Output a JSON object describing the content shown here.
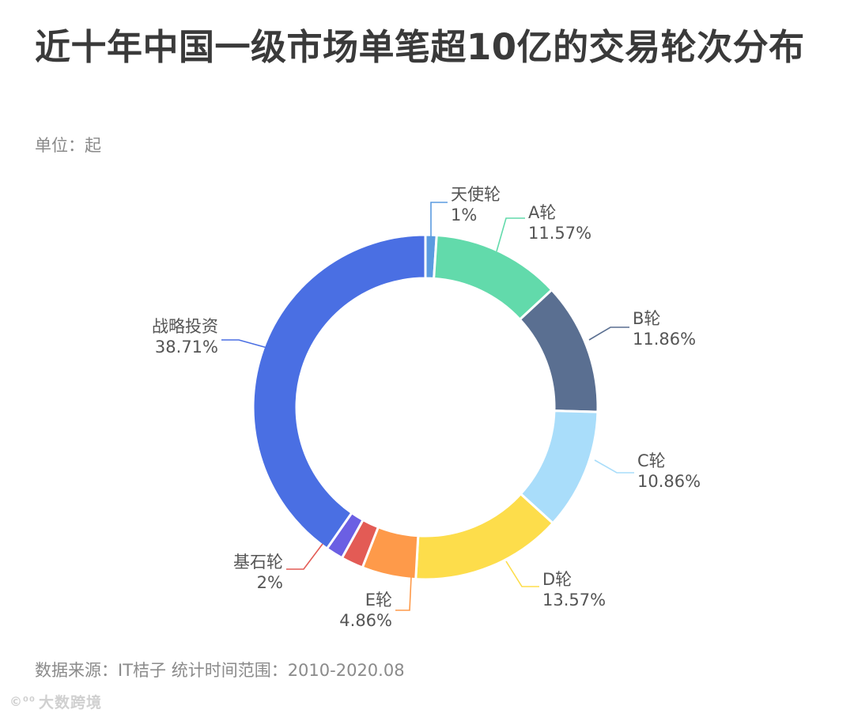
{
  "header": {
    "title": "近十年中国一级市场单笔超10亿的交易轮次分布",
    "unit": "单位：起"
  },
  "footer": {
    "source": "数据来源：IT桔子 统计时间范围：2010-2020.08",
    "watermark": "大数跨境"
  },
  "icons": {
    "watermark": "logo-icon"
  },
  "chart_data": {
    "type": "pie",
    "donut": true,
    "start": "top",
    "direction": "clockwise",
    "slices": [
      {
        "name": "天使轮",
        "value": 1,
        "label": "1%",
        "color": "#5B9BE0"
      },
      {
        "name": "A轮",
        "value": 11.57,
        "label": "11.57%",
        "color": "#62DAAB"
      },
      {
        "name": "B轮",
        "value": 11.86,
        "label": "11.86%",
        "color": "#5A6F91"
      },
      {
        "name": "C轮",
        "value": 10.86,
        "label": "10.86%",
        "color": "#A9DDFA"
      },
      {
        "name": "D轮",
        "value": 13.57,
        "label": "13.57%",
        "color": "#FDDD4B"
      },
      {
        "name": "E轮",
        "value": 4.86,
        "label": "4.86%",
        "color": "#FE9A4A"
      },
      {
        "name": "基石轮",
        "value": 2,
        "label": "2%",
        "color": "#E35B55"
      },
      {
        "name": "",
        "value": 1.57,
        "label": "",
        "color": "#6B5FE3"
      },
      {
        "name": "战略投资",
        "value": 38.71,
        "label": "38.71%",
        "color": "#4A6FE3"
      }
    ]
  }
}
